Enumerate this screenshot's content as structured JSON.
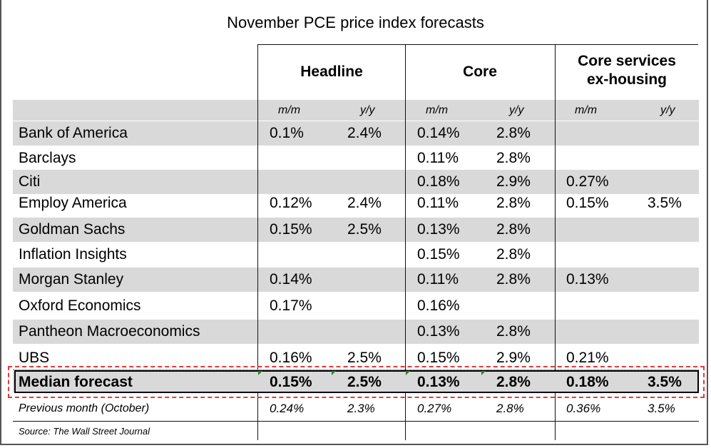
{
  "chart_data": {
    "type": "table",
    "title": "November PCE price index forecasts",
    "column_groups": [
      "Headline",
      "Core",
      "Core services ex-housing"
    ],
    "subcolumns": [
      "m/m",
      "y/y",
      "m/m",
      "y/y",
      "m/m",
      "y/y"
    ],
    "rows": [
      {
        "name": "Bank of America",
        "values": [
          "0.1%",
          "2.4%",
          "0.14%",
          "2.8%",
          "",
          ""
        ]
      },
      {
        "name": "Barclays",
        "values": [
          "",
          "",
          "0.11%",
          "2.8%",
          "",
          ""
        ]
      },
      {
        "name": "Citi",
        "values": [
          "",
          "",
          "0.18%",
          "2.9%",
          "0.27%",
          ""
        ]
      },
      {
        "name": "Employ America",
        "values": [
          "0.12%",
          "2.4%",
          "0.11%",
          "2.8%",
          "0.15%",
          "3.5%"
        ]
      },
      {
        "name": "Goldman Sachs",
        "values": [
          "0.15%",
          "2.5%",
          "0.13%",
          "2.8%",
          "",
          ""
        ]
      },
      {
        "name": "Inflation Insights",
        "values": [
          "",
          "",
          "0.15%",
          "2.8%",
          "",
          ""
        ]
      },
      {
        "name": "Morgan Stanley",
        "values": [
          "0.14%",
          "",
          "0.11%",
          "2.8%",
          "0.13%",
          ""
        ]
      },
      {
        "name": "Oxford Economics",
        "values": [
          "0.17%",
          "",
          "0.16%",
          "",
          "",
          ""
        ]
      },
      {
        "name": "Pantheon Macroeconomics",
        "values": [
          "",
          "",
          "0.13%",
          "2.8%",
          "",
          ""
        ]
      },
      {
        "name": "UBS",
        "values": [
          "0.16%",
          "2.5%",
          "0.15%",
          "2.9%",
          "0.21%",
          ""
        ]
      }
    ],
    "median": {
      "name": "Median forecast",
      "values": [
        "0.15%",
        "2.5%",
        "0.13%",
        "2.8%",
        "0.18%",
        "3.5%"
      ]
    },
    "previous": {
      "name": "Previous month (October)",
      "values": [
        "0.24%",
        "2.3%",
        "0.27%",
        "2.8%",
        "0.36%",
        "3.5%"
      ]
    },
    "source": "Source: The Wall Street Journal"
  },
  "colors": {
    "stripe": "#d9d9d9",
    "highlight_dash": "#e23b3b",
    "marker": "#2e7d32"
  }
}
